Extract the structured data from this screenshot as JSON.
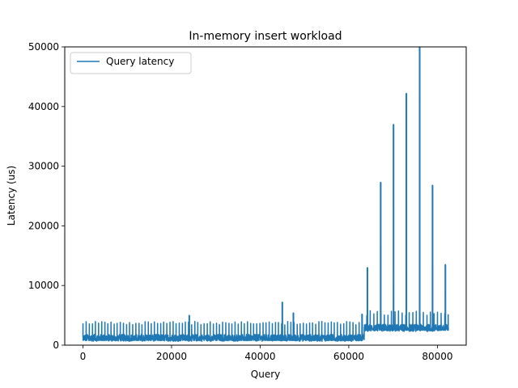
{
  "chart_data": {
    "type": "line",
    "title": "In-memory insert workload",
    "xlabel": "Query",
    "ylabel": "Latency (us)",
    "xlim": [
      -4100,
      86500
    ],
    "ylim": [
      0,
      50000
    ],
    "xticks": [
      0,
      20000,
      40000,
      60000,
      80000
    ],
    "xtick_labels": [
      "0",
      "20000",
      "40000",
      "60000",
      "80000"
    ],
    "yticks": [
      0,
      10000,
      20000,
      30000,
      40000,
      50000
    ],
    "ytick_labels": [
      "0",
      "10000",
      "20000",
      "30000",
      "40000",
      "50000"
    ],
    "grid": false,
    "legend_position": "upper-left",
    "color": "#1f77b4",
    "series": [
      {
        "name": "Query latency",
        "segments": [
          {
            "x_start": 0,
            "x_end": 63500,
            "baseline": 800,
            "low": 650,
            "high": 1800,
            "spike_interval": 700,
            "spike_height": 4000
          },
          {
            "x_start": 63500,
            "x_end": 82500,
            "baseline": 2500,
            "low": 2300,
            "high": 3500,
            "spike_interval": 800,
            "spike_height": 5800
          }
        ],
        "peaks": [
          {
            "x": 24000,
            "y": 5000
          },
          {
            "x": 45000,
            "y": 7200
          },
          {
            "x": 47500,
            "y": 5400
          },
          {
            "x": 63000,
            "y": 5200
          },
          {
            "x": 64200,
            "y": 13000
          },
          {
            "x": 67200,
            "y": 27300
          },
          {
            "x": 70100,
            "y": 37000
          },
          {
            "x": 73000,
            "y": 42200
          },
          {
            "x": 76000,
            "y": 50000
          },
          {
            "x": 78900,
            "y": 26800
          },
          {
            "x": 81800,
            "y": 13500
          }
        ]
      }
    ]
  }
}
